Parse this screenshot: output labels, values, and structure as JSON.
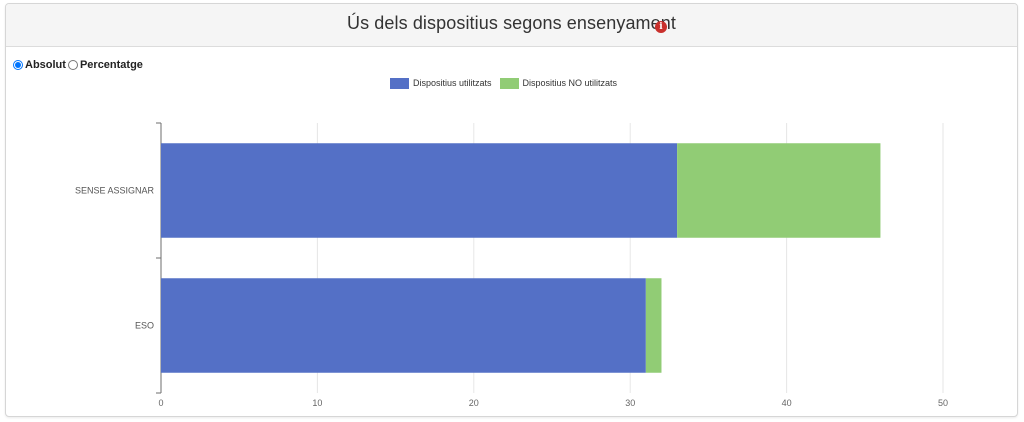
{
  "header": {
    "title": "Ús dels dispositius segons ensenyament",
    "info_icon": "i"
  },
  "controls": {
    "radio_absolut": "Absolut",
    "radio_percentatge": "Percentatge",
    "selected": "Absolut"
  },
  "colors": {
    "used": "#5470c6",
    "not_used": "#91cc75"
  },
  "chart_data": {
    "type": "bar",
    "orientation": "horizontal",
    "stacked": true,
    "categories": [
      "SENSE ASSIGNAR",
      "ESO"
    ],
    "series": [
      {
        "name": "Dispositius utilitzats",
        "values": [
          33,
          31
        ]
      },
      {
        "name": "Dispositius NO utilitzats",
        "values": [
          13,
          1
        ]
      }
    ],
    "xlim": [
      0,
      50
    ],
    "xticks": [
      0,
      10,
      20,
      30,
      40,
      50
    ],
    "grid": true,
    "legend_position": "top-center"
  }
}
